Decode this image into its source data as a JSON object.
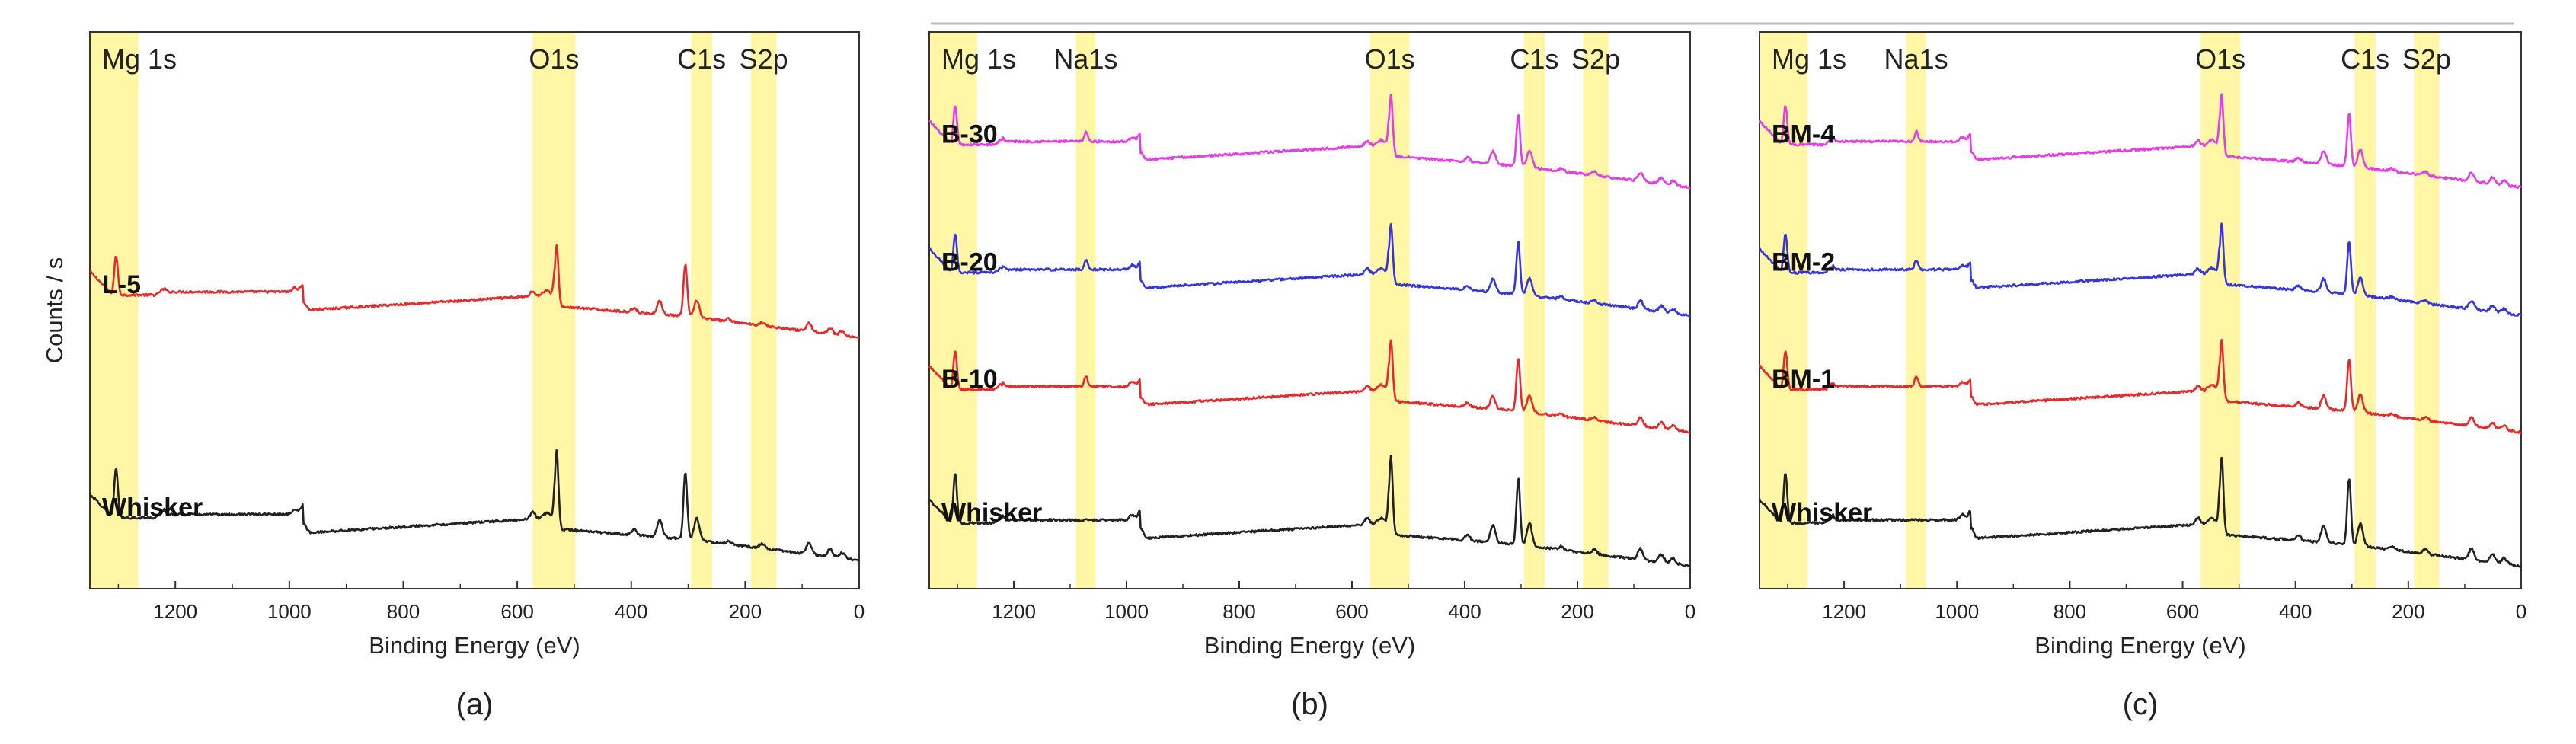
{
  "chart_data": [
    {
      "type": "line",
      "panel_label": "(a)",
      "xlabel": "Binding Energy (eV)",
      "ylabel": "Counts / s",
      "xlim": [
        1350,
        0
      ],
      "xticks": [
        1200,
        1000,
        800,
        600,
        400,
        200,
        0
      ],
      "y_ticks_shown": false,
      "highlight_bands": [
        {
          "label": "Mg 1s",
          "from": 1265,
          "to": 1350
        },
        {
          "label": "O1s",
          "from": 498,
          "to": 573
        },
        {
          "label": "C1s",
          "from": 258,
          "to": 295
        },
        {
          "label": "S2p",
          "from": 145,
          "to": 190
        }
      ],
      "series": [
        {
          "name": "L-5",
          "color": "#e32b2b",
          "baseline_level": 0.5,
          "edge_offset": 0.07
        },
        {
          "name": "Whisker",
          "color": "#222222",
          "baseline_level": 0.1,
          "edge_offset": 0.07
        }
      ]
    },
    {
      "type": "line",
      "panel_label": "(b)",
      "xlabel": "Binding Energy (eV)",
      "ylabel": "",
      "xlim": [
        1350,
        0
      ],
      "xticks": [
        1200,
        1000,
        800,
        600,
        400,
        200,
        0
      ],
      "y_ticks_shown": false,
      "highlight_bands": [
        {
          "label": "Mg 1s",
          "from": 1265,
          "to": 1350
        },
        {
          "label": "Na1s",
          "from": 1055,
          "to": 1090
        },
        {
          "label": "O1s",
          "from": 498,
          "to": 568
        },
        {
          "label": "C1s",
          "from": 258,
          "to": 295
        },
        {
          "label": "S2p",
          "from": 145,
          "to": 190
        }
      ],
      "series": [
        {
          "name": "B-30",
          "color": "#e23fe0",
          "baseline_level": 0.77,
          "edge_offset": 0.07
        },
        {
          "name": "B-20",
          "color": "#3535d8",
          "baseline_level": 0.54,
          "edge_offset": 0.07
        },
        {
          "name": "B-10",
          "color": "#e32b2b",
          "baseline_level": 0.33,
          "edge_offset": 0.07
        },
        {
          "name": "Whisker",
          "color": "#222222",
          "baseline_level": 0.09,
          "edge_offset": 0.07
        }
      ]
    },
    {
      "type": "line",
      "panel_label": "(c)",
      "xlabel": "Binding Energy (eV)",
      "ylabel": "",
      "xlim": [
        1350,
        0
      ],
      "xticks": [
        1200,
        1000,
        800,
        600,
        400,
        200,
        0
      ],
      "y_ticks_shown": false,
      "highlight_bands": [
        {
          "label": "Mg 1s",
          "from": 1265,
          "to": 1350
        },
        {
          "label": "Na1s",
          "from": 1055,
          "to": 1090
        },
        {
          "label": "O1s",
          "from": 498,
          "to": 568
        },
        {
          "label": "C1s",
          "from": 258,
          "to": 295
        },
        {
          "label": "S2p",
          "from": 145,
          "to": 190
        }
      ],
      "series": [
        {
          "name": "BM-4",
          "color": "#e23fe0",
          "baseline_level": 0.77,
          "edge_offset": 0.07
        },
        {
          "name": "BM-2",
          "color": "#3535d8",
          "baseline_level": 0.54,
          "edge_offset": 0.07
        },
        {
          "name": "BM-1",
          "color": "#e32b2b",
          "baseline_level": 0.33,
          "edge_offset": 0.07
        },
        {
          "name": "Whisker",
          "color": "#222222",
          "baseline_level": 0.09,
          "edge_offset": 0.07
        }
      ]
    }
  ],
  "peak_positions_ev": [
    1304,
    1223,
    990,
    975,
    573,
    531,
    395,
    350,
    305,
    285,
    229,
    170,
    88,
    51,
    30
  ],
  "peak_heights": [
    0.09,
    0.012,
    0.01,
    0.018,
    0.012,
    0.14,
    0.01,
    0.03,
    0.12,
    0.04,
    0.006,
    0.008,
    0.02,
    0.014,
    0.01
  ],
  "colors": {
    "band": "#fff7a6",
    "axis": "#333333"
  }
}
